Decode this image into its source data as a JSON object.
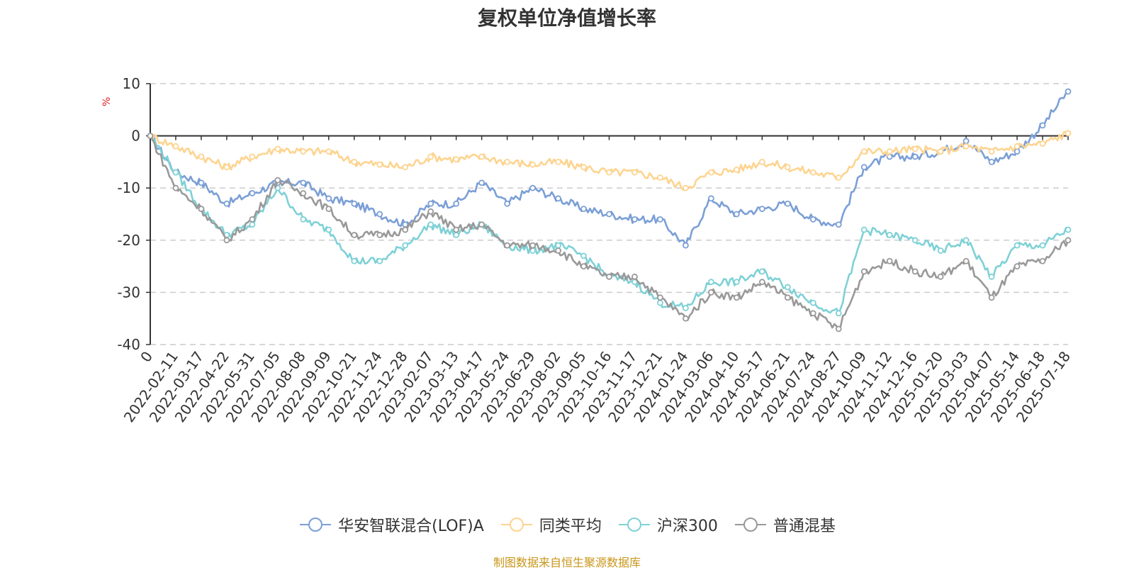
{
  "title": "复权单位净值增长率",
  "source": "制图数据来自恒生聚源数据库",
  "chart_data": {
    "type": "line",
    "title": "复权单位净值增长率",
    "ylabel": "%",
    "xlabel": "",
    "ylim": [
      -40,
      10
    ],
    "yticks": [
      10,
      0,
      -10,
      -20,
      -30,
      -40
    ],
    "grid": true,
    "legend_position": "bottom",
    "x_ticks": [
      "0",
      "2022-02-11",
      "2022-03-17",
      "2022-04-22",
      "2022-05-31",
      "2022-07-05",
      "2022-08-08",
      "2022-09-09",
      "2022-10-21",
      "2022-11-24",
      "2022-12-28",
      "2023-02-07",
      "2023-03-13",
      "2023-04-17",
      "2023-05-24",
      "2023-06-29",
      "2023-08-02",
      "2023-09-05",
      "2023-10-16",
      "2023-11-17",
      "2023-12-21",
      "2024-01-24",
      "2024-03-06",
      "2024-04-10",
      "2024-05-17",
      "2024-06-21",
      "2024-07-24",
      "2024-08-27",
      "2024-10-09",
      "2024-11-12",
      "2024-12-16",
      "2025-01-20",
      "2025-03-03",
      "2025-04-07",
      "2025-05-14",
      "2025-06-18",
      "2025-07-18"
    ],
    "series": [
      {
        "name": "华安智联混合(LOF)A",
        "color": "#7b9fd6",
        "values": [
          0,
          -7,
          -9,
          -13,
          -11,
          -9,
          -9,
          -12,
          -13,
          -15,
          -17,
          -13,
          -13,
          -9,
          -13,
          -10,
          -12,
          -14,
          -15,
          -16,
          -16,
          -21,
          -12,
          -15,
          -14,
          -13,
          -16,
          -17,
          -6,
          -4,
          -4,
          -3,
          -1,
          -5,
          -3,
          2,
          8.5
        ]
      },
      {
        "name": "同类平均",
        "color": "#fdd490",
        "values": [
          0,
          -2,
          -4,
          -6,
          -4,
          -2.5,
          -3,
          -3,
          -5,
          -5.5,
          -6,
          -4,
          -4.5,
          -4,
          -5,
          -5.5,
          -5,
          -6,
          -7,
          -7,
          -8,
          -10,
          -7,
          -6.5,
          -5,
          -6,
          -7,
          -8,
          -3,
          -3,
          -2.5,
          -3,
          -2,
          -3,
          -2,
          -1.5,
          0.5
        ]
      },
      {
        "name": "沪深300",
        "color": "#7fd1d6",
        "values": [
          0,
          -7,
          -14,
          -19,
          -17,
          -10,
          -16,
          -18,
          -24,
          -24,
          -21,
          -17,
          -19,
          -17,
          -21,
          -22,
          -21,
          -23,
          -27,
          -28,
          -32,
          -33,
          -28,
          -28,
          -26,
          -29,
          -32,
          -34,
          -18,
          -19,
          -20,
          -22,
          -20,
          -27,
          -21,
          -21,
          -18
        ]
      },
      {
        "name": "普通混基",
        "color": "#999999",
        "values": [
          0,
          -10,
          -14,
          -20,
          -16,
          -8.5,
          -11,
          -14,
          -19,
          -19,
          -18,
          -14.5,
          -18,
          -17,
          -21,
          -21,
          -22,
          -25,
          -27,
          -27,
          -31,
          -35,
          -30,
          -31,
          -28,
          -31,
          -34,
          -37,
          -26,
          -24,
          -26,
          -27,
          -24,
          -31,
          -25,
          -24,
          -20
        ]
      }
    ]
  }
}
